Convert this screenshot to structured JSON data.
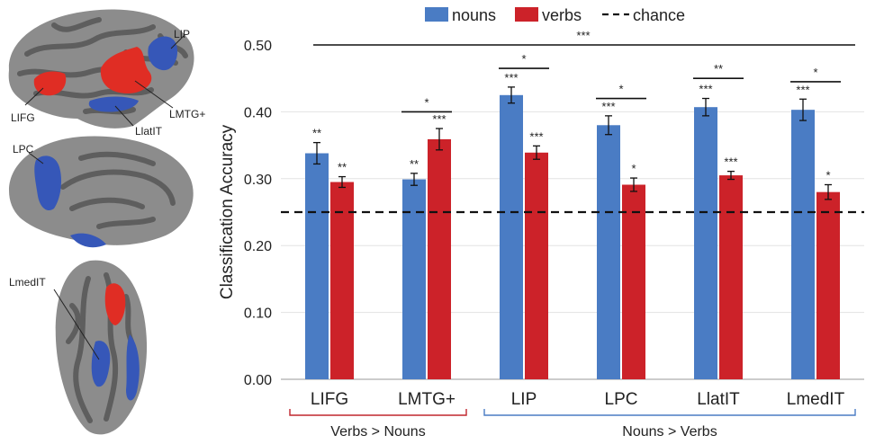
{
  "brain_labels": {
    "lip": "LIP",
    "lifg": "LIFG",
    "lmtg": "LMTG+",
    "llatit": "LlatIT",
    "lpc": "LPC",
    "lmedit": "LmedIT"
  },
  "colors": {
    "nouns": "#4a7cc4",
    "verbs": "#cc2229",
    "brain_gyri": "#8c8c8c",
    "brain_sulci": "#5e5e5e",
    "group_verbs": "#c0262d",
    "group_nouns": "#4a7cc4"
  },
  "chart_data": {
    "type": "bar",
    "ylabel": "Classification Accuracy",
    "ylim": [
      0,
      0.5
    ],
    "yticks": [
      "0.00",
      "0.10",
      "0.20",
      "0.30",
      "0.40",
      "0.50"
    ],
    "grid": true,
    "legend_position": "top-center",
    "legend": {
      "nouns": "nouns",
      "verbs": "verbs",
      "chance": "chance"
    },
    "categories": [
      "LIFG",
      "LMTG+",
      "LIP",
      "LPC",
      "LlatIT",
      "LmedIT"
    ],
    "series": [
      {
        "name": "nouns",
        "values": [
          0.338,
          0.299,
          0.425,
          0.38,
          0.407,
          0.403
        ],
        "errors": [
          0.016,
          0.009,
          0.012,
          0.014,
          0.013,
          0.016
        ],
        "stars": [
          "**",
          "**",
          "***",
          "***",
          "***",
          "***"
        ]
      },
      {
        "name": "verbs",
        "values": [
          0.295,
          0.359,
          0.339,
          0.291,
          0.305,
          0.28
        ],
        "errors": [
          0.008,
          0.016,
          0.01,
          0.01,
          0.006,
          0.011
        ],
        "stars": [
          "**",
          "***",
          "***",
          "*",
          "***",
          "*"
        ]
      }
    ],
    "chance_level": 0.25,
    "pair_brackets": [
      {
        "category": "LMTG+",
        "y": 0.4,
        "label": "*"
      },
      {
        "category": "LIP",
        "y": 0.465,
        "label": "*"
      },
      {
        "category": "LPC",
        "y": 0.42,
        "label": "*"
      },
      {
        "category": "LlatIT",
        "y": 0.45,
        "label": "**"
      },
      {
        "category": "LmedIT",
        "y": 0.445,
        "label": "*"
      }
    ],
    "top_bracket": {
      "y": 0.5,
      "label": "***"
    },
    "groups": [
      {
        "label": "Verbs > Nouns",
        "from": 0,
        "to": 1,
        "color_key": "group_verbs"
      },
      {
        "label": "Nouns > Verbs",
        "from": 2,
        "to": 5,
        "color_key": "group_nouns"
      }
    ]
  }
}
